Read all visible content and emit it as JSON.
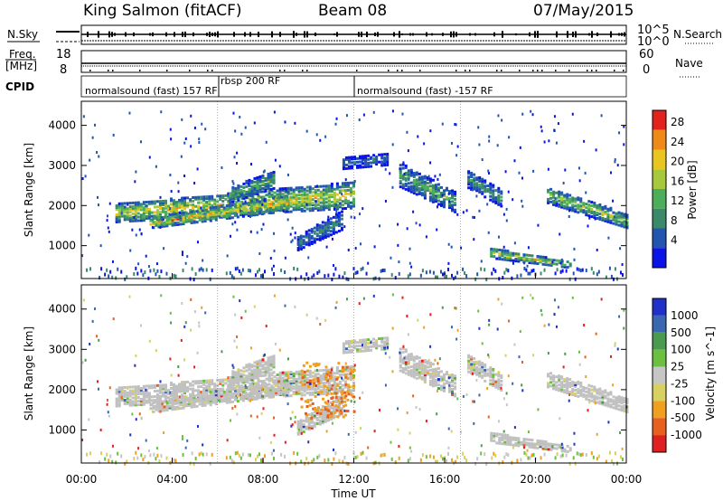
{
  "header": {
    "station": "King Salmon (fitACF)",
    "beam": "Beam 08",
    "date": "07/May/2015"
  },
  "noise_panel": {
    "left_label": "N.Sky",
    "right_label": "N.Search",
    "tick_high": "10^5",
    "tick_low": "10^0"
  },
  "freq_panel": {
    "left_label_1": "Freq.",
    "left_label_2": "[MHz]",
    "left_ticks": [
      "18",
      "8"
    ],
    "right_label": "Nave",
    "right_ticks": [
      "60",
      "0"
    ]
  },
  "cpid": {
    "label": "CPID",
    "segments": [
      {
        "name": "normalsound (fast) 157 RF",
        "start_h": 0,
        "end_h": 6
      },
      {
        "name": "rbsp 200 RF",
        "start_h": 6,
        "end_h": 12
      },
      {
        "name": "normalsound (fast) -157 RF",
        "start_h": 12,
        "end_h": 24
      }
    ]
  },
  "colors": {
    "power": [
      "#0a14e6",
      "#2255b0",
      "#3a8a6a",
      "#4cae5a",
      "#a7c83a",
      "#e9c61f",
      "#ef8a18",
      "#e3231b"
    ],
    "velocity": [
      "#2030c8",
      "#3a68b0",
      "#4a9a50",
      "#6cc040",
      "#c6c6c6",
      "#d8d060",
      "#f0a020",
      "#e86020",
      "#e02020"
    ],
    "ground_scatter": "#c0c0c0"
  },
  "chart_data": [
    {
      "type": "heatmap",
      "title": "Power",
      "ylabel": "Slant Range [km]",
      "colorbar_label": "Power [dB]",
      "colorbar_ticks": [
        "28",
        "24",
        "20",
        "16",
        "12",
        "8",
        "4"
      ],
      "colorbar_range": [
        0,
        30
      ],
      "x_ticks": [
        "00:00",
        "04:00",
        "08:00",
        "12:00",
        "16:00",
        "20:00",
        "00:00"
      ],
      "xlim_hours": [
        0,
        24
      ],
      "y_ticks": [
        "4000",
        "3000",
        "2000",
        "1000"
      ],
      "ylim_km": [
        180,
        4600
      ],
      "scatter_regions": [
        {
          "t0": 1.5,
          "t1": 12.0,
          "r0_start": 1850,
          "r0_end": 2300,
          "w0": 450,
          "w1": 650,
          "peak_db": 22
        },
        {
          "t0": 3.0,
          "t1": 9.0,
          "r0_start": 1600,
          "r0_end": 2100,
          "w0": 250,
          "w1": 400,
          "peak_db": 24
        },
        {
          "t0": 6.5,
          "t1": 8.5,
          "r0_start": 2300,
          "r0_end": 2700,
          "w0": 400,
          "w1": 450,
          "peak_db": 14
        },
        {
          "t0": 9.5,
          "t1": 11.5,
          "r0_start": 1100,
          "r0_end": 1700,
          "w0": 350,
          "w1": 500,
          "peak_db": 10
        },
        {
          "t0": 11.5,
          "t1": 13.5,
          "r0_start": 3100,
          "r0_end": 3200,
          "w0": 300,
          "w1": 300,
          "peak_db": 8
        },
        {
          "t0": 14.0,
          "t1": 16.5,
          "r0_start": 2800,
          "r0_end": 2100,
          "w0": 600,
          "w1": 500,
          "peak_db": 14
        },
        {
          "t0": 17.0,
          "t1": 18.5,
          "r0_start": 2700,
          "r0_end": 2200,
          "w0": 450,
          "w1": 400,
          "peak_db": 12
        },
        {
          "t0": 18.0,
          "t1": 21.5,
          "r0_start": 850,
          "r0_end": 560,
          "w0": 250,
          "w1": 150,
          "peak_db": 22
        },
        {
          "t0": 20.5,
          "t1": 24.0,
          "r0_start": 2300,
          "r0_end": 1650,
          "w0": 400,
          "w1": 350,
          "peak_db": 18
        }
      ]
    },
    {
      "type": "heatmap",
      "title": "Velocity",
      "ylabel": "Slant Range [km]",
      "colorbar_label": "Velocity [m s^-1]",
      "colorbar_ticks": [
        "1000",
        "500",
        "100",
        "25",
        "-25",
        "-100",
        "-500",
        "-1000"
      ],
      "colorbar_range": [
        -1200,
        1200
      ],
      "x_ticks": [
        "00:00",
        "04:00",
        "08:00",
        "12:00",
        "16:00",
        "20:00",
        "00:00"
      ],
      "xlim_hours": [
        0,
        24
      ],
      "xlabel": "Time UT",
      "y_ticks": [
        "4000",
        "3000",
        "2000",
        "1000"
      ],
      "ylim_km": [
        180,
        4600
      ]
    }
  ]
}
